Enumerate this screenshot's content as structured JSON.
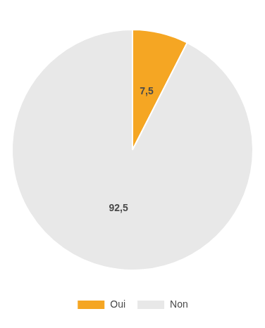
{
  "chart_data": {
    "type": "pie",
    "categories": [
      "Oui",
      "Non"
    ],
    "values": [
      7.5,
      92.5
    ],
    "value_labels": [
      "7,5",
      "92,5"
    ],
    "colors": [
      "#F5A623",
      "#E8E8E8"
    ],
    "data_labels": true,
    "legend": "bottom"
  }
}
